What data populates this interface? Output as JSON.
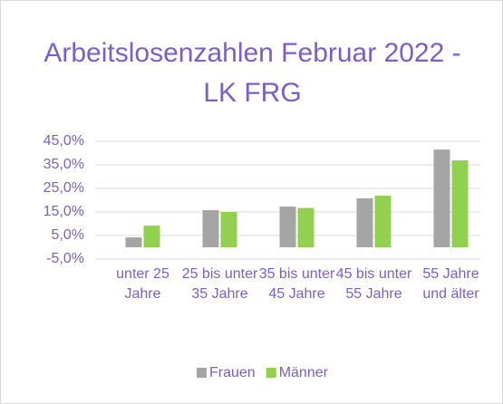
{
  "chart_data": {
    "type": "bar",
    "title": "Arbeitslosenzahlen Februar 2022 - LK FRG",
    "categories": [
      "unter 25 Jahre",
      "25 bis unter 35 Jahre",
      "35 bis unter 45 Jahre",
      "45 bis unter 55 Jahre",
      "55 Jahre und älter"
    ],
    "series": [
      {
        "name": "Frauen",
        "color": "#a5a5a5",
        "values": [
          4.2,
          15.8,
          17.3,
          20.8,
          41.5
        ]
      },
      {
        "name": "Männer",
        "color": "#92d050",
        "values": [
          9.2,
          15.0,
          16.7,
          21.9,
          36.9
        ]
      }
    ],
    "ylim": [
      -5,
      45
    ],
    "yticks": [
      {
        "value": -5,
        "label": "-5,0%"
      },
      {
        "value": 5,
        "label": "5,0%"
      },
      {
        "value": 15,
        "label": "15,0%"
      },
      {
        "value": 25,
        "label": "25,0%"
      },
      {
        "value": 35,
        "label": "35,0%"
      },
      {
        "value": 45,
        "label": "45,0%"
      }
    ],
    "grid": true,
    "legend": "bottom"
  }
}
